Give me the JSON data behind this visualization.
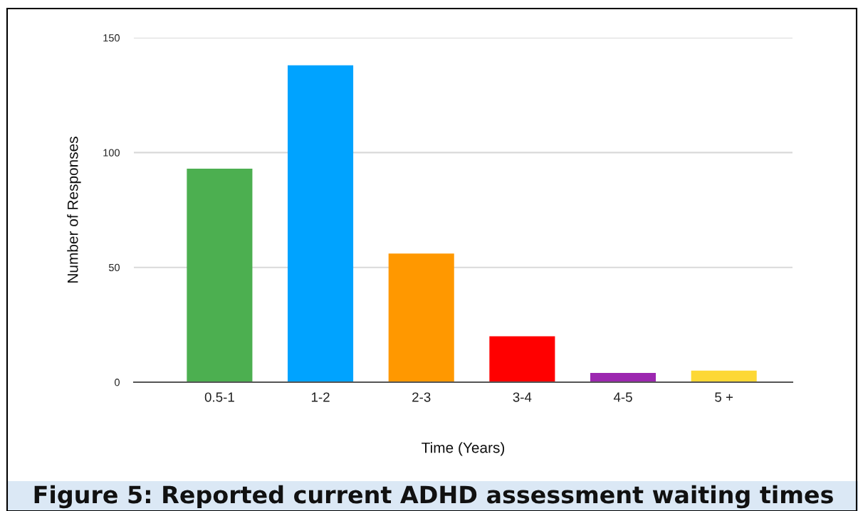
{
  "chart_data": {
    "type": "bar",
    "title": "Figure 5: Reported current ADHD assessment waiting times",
    "xlabel": "Time (Years)",
    "ylabel": "Number of Responses",
    "categories": [
      "0.5-1",
      "1-2",
      "2-3",
      "3-4",
      "4-5",
      "5 +"
    ],
    "values": [
      93,
      138,
      56,
      20,
      4,
      5
    ],
    "colors": [
      "#4caf50",
      "#00a3ff",
      "#ff9800",
      "#ff0000",
      "#9c27b0",
      "#fdd835"
    ],
    "ylim": [
      0,
      150
    ],
    "yticks": [
      0,
      50,
      100,
      150
    ],
    "grid": "y"
  }
}
